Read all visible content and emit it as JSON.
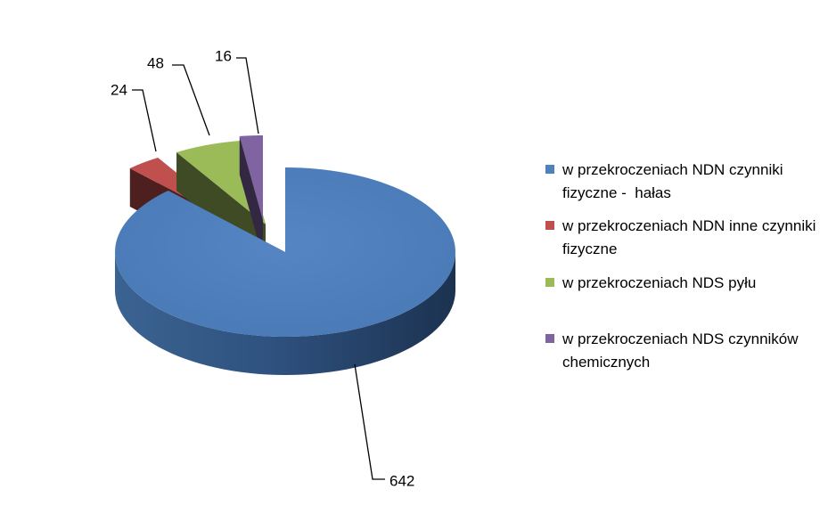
{
  "chart_data": {
    "type": "pie",
    "three_d": true,
    "title": "",
    "categories": [
      "w przekroczeniach NDN czynniki fizyczne -  hałas",
      "w przekroczeniach NDN inne czynniki fizyczne",
      "w przekroczeniach NDS pyłu",
      "w przekroczeniach NDS czynników chemicznych"
    ],
    "values": [
      642,
      24,
      48,
      16
    ],
    "value_labels": [
      "642",
      "24",
      "48",
      "16"
    ],
    "colors": [
      "#4f81bd",
      "#c0504d",
      "#9bbb59",
      "#8064a2"
    ],
    "exploded_slices": [
      1,
      2,
      3
    ],
    "legend_position": "right",
    "data_labels": "outside-with-leader-lines"
  },
  "legend": {
    "items": [
      {
        "label": "w przekroczeniach NDN czynniki fizyczne -  hałas",
        "color": "#4f81bd"
      },
      {
        "label": "w przekroczeniach NDN inne czynniki fizyczne",
        "color": "#c0504d"
      },
      {
        "label": "w przekroczeniach NDS pyłu",
        "color": "#9bbb59"
      },
      {
        "label": "w przekroczeniach NDS czynników chemicznych",
        "color": "#8064a2"
      }
    ]
  }
}
